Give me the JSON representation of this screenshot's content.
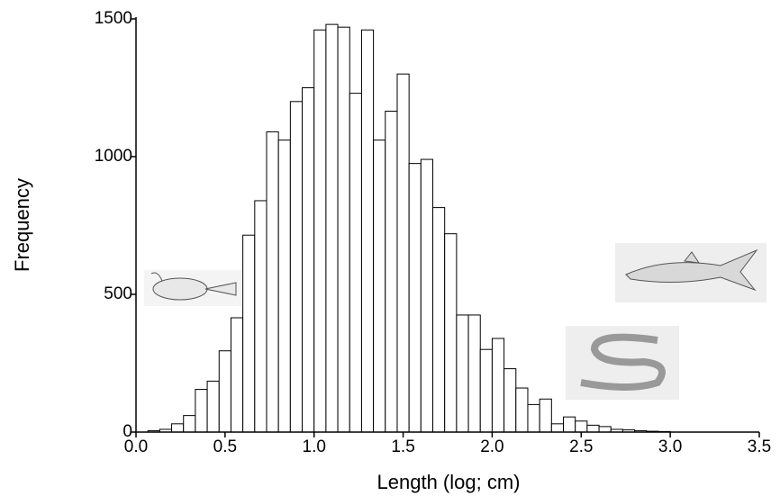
{
  "chart_data": {
    "type": "histogram",
    "x_label": "Length (log; cm)",
    "y_label": "Frequency",
    "bins": [
      0.0667,
      0.1333,
      0.2,
      0.2667,
      0.3333,
      0.4,
      0.4667,
      0.5333,
      0.6,
      0.6667,
      0.7333,
      0.8,
      0.8667,
      0.9333,
      1.0,
      1.0667,
      1.1333,
      1.2,
      1.2667,
      1.3333,
      1.4,
      1.4667,
      1.5333,
      1.6,
      1.6667,
      1.7333,
      1.8,
      1.8667,
      1.9333,
      2.0,
      2.0667,
      2.1333,
      2.2,
      2.2667,
      2.3333,
      2.4,
      2.4667,
      2.5333,
      2.6,
      2.6667,
      2.7333,
      2.8,
      2.8667,
      2.9333,
      3.0
    ],
    "values": [
      5,
      10,
      30,
      60,
      155,
      185,
      295,
      415,
      715,
      840,
      1090,
      1060,
      1200,
      1250,
      1460,
      1480,
      1470,
      1230,
      1460,
      1060,
      1165,
      1300,
      975,
      990,
      815,
      720,
      425,
      425,
      300,
      340,
      230,
      160,
      100,
      120,
      30,
      55,
      40,
      25,
      20,
      10,
      8,
      5,
      3,
      2
    ],
    "color": "#ffffff",
    "xlim": [
      0,
      3.5
    ],
    "xticks": [
      {
        "value": 0,
        "label": "0.0"
      },
      0.5,
      {
        "value": 1,
        "label": "1.0"
      },
      1.5,
      {
        "value": 2,
        "label": "2.0"
      },
      2.5,
      {
        "value": 3,
        "label": "3.0"
      },
      3.5
    ],
    "ylim": [
      0,
      1500
    ],
    "yticks": [
      0,
      500,
      1000,
      1500
    ],
    "grid": false
  }
}
